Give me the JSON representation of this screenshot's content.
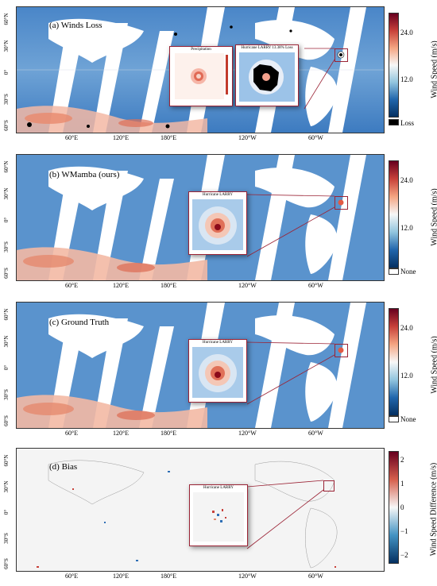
{
  "panels": [
    {
      "title": "(a) Winds Loss",
      "colorbar": {
        "ticks": [
          "24.0",
          "12.0"
        ],
        "bottom_label": "Loss",
        "label": "Wind Speed (m/s)"
      },
      "insets": [
        {
          "title": "Precipitation"
        },
        {
          "title": "Hurricane LARRY 13.38% Loss"
        }
      ]
    },
    {
      "title": "(b) WMamba (ours)",
      "colorbar": {
        "ticks": [
          "24.0",
          "12.0"
        ],
        "bottom_label": "None",
        "label": "Wind Speed (m/s)"
      },
      "insets": [
        {
          "title": "Hurricane LARRY"
        }
      ]
    },
    {
      "title": "(c) Ground Truth",
      "colorbar": {
        "ticks": [
          "24.0",
          "12.0"
        ],
        "bottom_label": "None",
        "label": "Wind Speed (m/s)"
      },
      "insets": [
        {
          "title": "Hurricane LARRY"
        }
      ]
    },
    {
      "title": "(d) Bias",
      "colorbar": {
        "ticks": [
          "2",
          "1",
          "0",
          "−1",
          "−2"
        ],
        "bottom_label": "",
        "label": "Wind Speed Difference (m/s)"
      },
      "insets": [
        {
          "title": "Hurricane LARRY"
        }
      ]
    }
  ],
  "latitude_labels": [
    "60°N",
    "30°N",
    "0°",
    "30°S",
    "60°S"
  ],
  "longitude_labels": [
    "60°E",
    "120°E",
    "180°E",
    "120°W",
    "60°W"
  ],
  "colors": {
    "high": "#8b0a1a",
    "mid": "#f7f7f7",
    "low": "#1f5fa8",
    "frame": "#9b2335"
  }
}
